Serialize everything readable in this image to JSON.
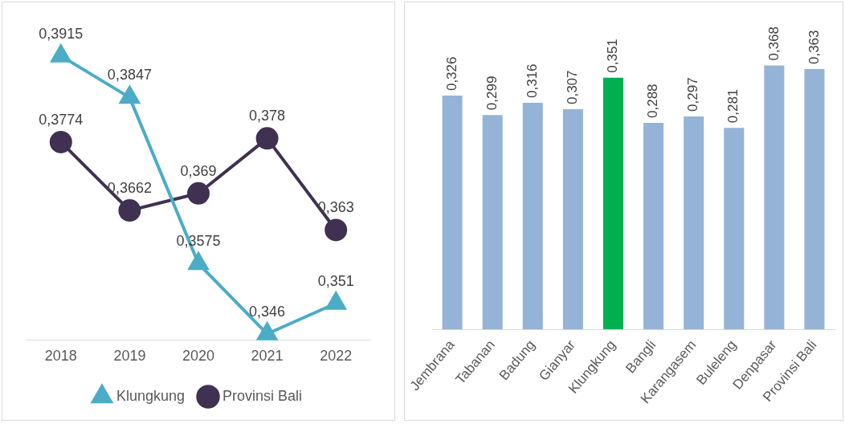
{
  "chart_data": [
    {
      "type": "line",
      "categories": [
        "2018",
        "2019",
        "2020",
        "2021",
        "2022"
      ],
      "series": [
        {
          "name": "Klungkung",
          "color": "#4bacc6",
          "marker": "triangle",
          "values": [
            0.3915,
            0.3847,
            0.3575,
            0.346,
            0.351
          ],
          "value_labels": [
            "0,3915",
            "0,3847",
            "0,3575",
            "0,346",
            "0,351"
          ]
        },
        {
          "name": "Provinsi Bali",
          "color": "#403152",
          "marker": "circle",
          "values": [
            0.3774,
            0.3662,
            0.369,
            0.378,
            0.363
          ],
          "value_labels": [
            "0,3774",
            "0,3662",
            "0,369",
            "0,378",
            "0,363"
          ]
        }
      ],
      "tick_labels": "x",
      "legend": "bottom",
      "grid": false
    },
    {
      "type": "bar",
      "categories": [
        "Jembrana",
        "Tabanan",
        "Badung",
        "Gianyar",
        "Klungkung",
        "Bangli",
        "Karangasem",
        "Buleleng",
        "Denpasar",
        "Provinsi Bali"
      ],
      "values": [
        0.326,
        0.299,
        0.316,
        0.307,
        0.351,
        0.288,
        0.297,
        0.281,
        0.368,
        0.363
      ],
      "value_labels": [
        "0,326",
        "0,299",
        "0,316",
        "0,307",
        "0,351",
        "0,288",
        "0,297",
        "0,281",
        "0,368",
        "0,363"
      ],
      "colors": [
        "#95b3d7",
        "#95b3d7",
        "#95b3d7",
        "#95b3d7",
        "#00b050",
        "#95b3d7",
        "#95b3d7",
        "#95b3d7",
        "#95b3d7",
        "#95b3d7"
      ],
      "tick_labels": "x",
      "legend": false,
      "grid": false
    }
  ]
}
